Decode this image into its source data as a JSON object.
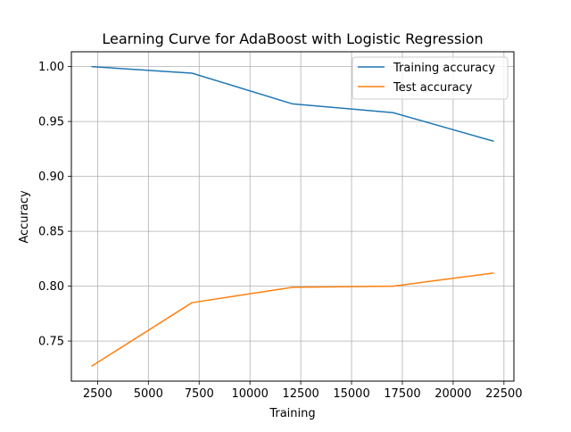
{
  "chart_data": {
    "type": "line",
    "title": "Learning Curve for AdaBoost with Logistic Regression",
    "xlabel": "Training",
    "ylabel": "Accuracy",
    "x": [
      2200,
      7150,
      12100,
      17050,
      22000
    ],
    "series": [
      {
        "name": "Training accuracy",
        "color": "#1f77b4",
        "values": [
          1.0,
          0.994,
          0.966,
          0.958,
          0.932
        ]
      },
      {
        "name": "Test accuracy",
        "color": "#ff7f0e",
        "values": [
          0.727,
          0.785,
          0.799,
          0.8,
          0.812
        ]
      }
    ],
    "xlim": [
      1210,
      22990
    ],
    "ylim": [
      0.7135,
      1.0135
    ],
    "xticks": [
      2500,
      5000,
      7500,
      10000,
      12500,
      15000,
      17500,
      20000,
      22500
    ],
    "xtick_labels": [
      "2500",
      "5000",
      "7500",
      "10000",
      "12500",
      "15000",
      "17500",
      "20000",
      "22500"
    ],
    "yticks": [
      0.75,
      0.8,
      0.85,
      0.9,
      0.95,
      1.0
    ],
    "ytick_labels": [
      "0.75",
      "0.80",
      "0.85",
      "0.90",
      "0.95",
      "1.00"
    ],
    "grid": true,
    "legend_position": "top-right"
  }
}
